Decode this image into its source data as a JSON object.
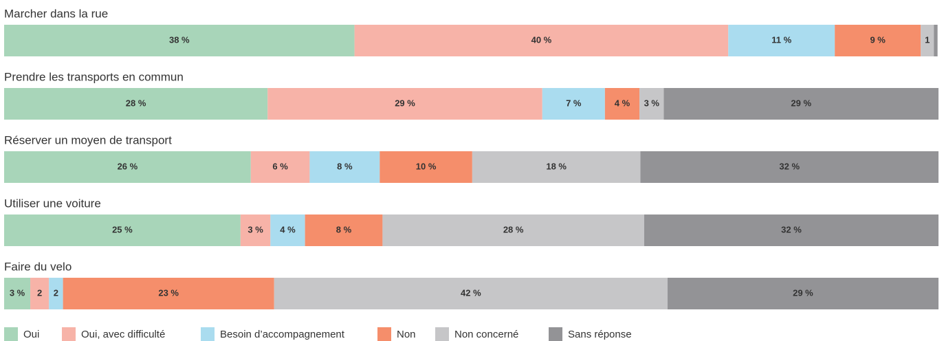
{
  "chart_data": {
    "type": "stacked-barh",
    "categories": [
      "Marcher dans la rue",
      "Prendre les transports en commun",
      "Réserver un moyen de transport",
      "Utiliser une voiture",
      "Faire du velo"
    ],
    "xlim": [
      0,
      100
    ],
    "legend": "bottom-left",
    "series": [
      {
        "name": "Oui",
        "color": "#a8d5b9",
        "values": [
          37.5,
          28.2,
          26.4,
          25.3,
          2.8
        ],
        "value_labels": [
          "38 %",
          "28 %",
          "26 %",
          "25 %",
          "3 %"
        ]
      },
      {
        "name": "Oui, avec difficulté",
        "color": "#f7b3a8",
        "values": [
          40.0,
          29.4,
          6.3,
          3.2,
          2.0
        ],
        "value_labels": [
          "40 %",
          "29 %",
          "6 %",
          "3 %",
          "2"
        ]
      },
      {
        "name": "Besoin d’accompagnement",
        "color": "#aadcef",
        "values": [
          11.4,
          6.7,
          7.5,
          3.7,
          1.5
        ],
        "value_labels": [
          "11 %",
          "7 %",
          "8 %",
          "4 %",
          "2"
        ]
      },
      {
        "name": "Non",
        "color": "#f58e6b",
        "values": [
          9.2,
          3.7,
          9.9,
          8.3,
          22.6
        ],
        "value_labels": [
          "9 %",
          "4 %",
          "10 %",
          "8 %",
          "23 %"
        ]
      },
      {
        "name": "Non concerné",
        "color": "#c6c6c8",
        "values": [
          1.4,
          2.6,
          18.0,
          28.0,
          42.1
        ],
        "value_labels": [
          "1",
          "3 %",
          "18 %",
          "28 %",
          "42 %"
        ]
      },
      {
        "name": "Sans réponse",
        "color": "#939396",
        "values": [
          0.4,
          29.4,
          31.9,
          31.5,
          29.0
        ],
        "value_labels": [
          null,
          "29 %",
          "32 %",
          "32 %",
          "29 %"
        ]
      }
    ]
  }
}
